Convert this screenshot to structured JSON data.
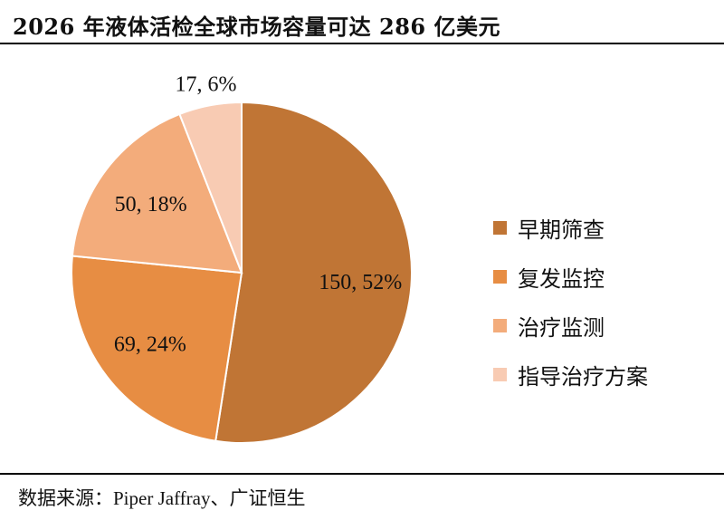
{
  "title": "2026 年液体活检全球市场容量可达 286 亿美元",
  "source": "数据来源：Piper Jaffray、广证恒生",
  "chart_data": {
    "type": "pie",
    "title": "2026 年液体活检全球市场容量可达 286 亿美元",
    "total": 286,
    "slices": [
      {
        "name": "早期筛查",
        "value": 150,
        "percent": 52,
        "label": "150, 52%",
        "color": "#c07535"
      },
      {
        "name": "复发监控",
        "value": 69,
        "percent": 24,
        "label": "69, 24%",
        "color": "#e78d43"
      },
      {
        "name": "治疗监测",
        "value": 50,
        "percent": 18,
        "label": "50, 18%",
        "color": "#f3ac7b"
      },
      {
        "name": "指导治疗方案",
        "value": 17,
        "percent": 6,
        "label": "17, 6%",
        "color": "#f8cbb3"
      }
    ],
    "legend_position": "right",
    "start_angle": "12 o'clock",
    "direction": "clockwise"
  }
}
